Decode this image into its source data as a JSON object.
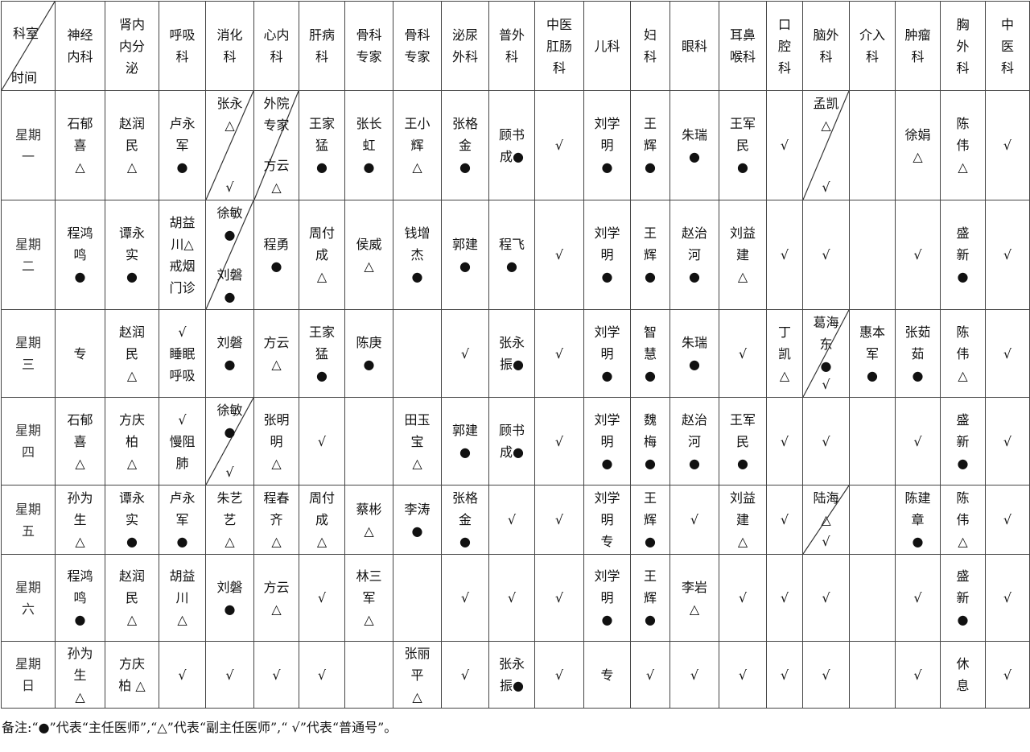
{
  "table": {
    "corner": {
      "top": "科室",
      "bottom": "时间"
    },
    "headers": [
      "神经\n内科",
      "肾内\n内分\n泌",
      "呼吸\n科",
      "消化\n科",
      "心内\n科",
      "肝病\n科",
      "骨科\n专家",
      "骨科\n专家",
      "泌尿\n外科",
      "普外\n科",
      "中医\n肛肠\n科",
      "儿科",
      "妇\n科",
      "眼科",
      "耳鼻\n喉科",
      "口\n腔\n科",
      "脑外\n科",
      "介入\n科",
      "肿瘤\n科",
      "胸\n外\n科",
      "中\n医\n科"
    ],
    "rows": [
      {
        "day": "星期\n一",
        "cells": [
          "石郁\n喜\n△",
          "赵润\n民\n△",
          "卢永\n军\n●",
          {
            "top": "张永\n△",
            "bottom": "√"
          },
          {
            "top": "外院\n专家",
            "bottom": "方云\n△"
          },
          "王家\n猛\n●",
          "张长\n虹\n●",
          "王小\n辉\n△",
          "张格\n金\n●",
          "顾书\n成●",
          "√",
          "刘学\n明\n●",
          "王\n辉\n●",
          "朱瑞\n●",
          "王军\n民\n●",
          "√",
          {
            "top": "孟凯\n△",
            "bottom": "√"
          },
          "",
          "徐娟\n△",
          "陈\n伟\n△",
          "√"
        ]
      },
      {
        "day": "星期\n二",
        "cells": [
          "程鸿\n鸣\n●",
          "谭永\n实\n●",
          "胡益\n川△\n戒烟\n门诊",
          {
            "top": "徐敏\n●",
            "bottom": "刘磐\n●"
          },
          "程勇\n●",
          "周付\n成\n△",
          "侯威\n△",
          "钱增\n杰\n●",
          "郭建\n●",
          "程飞\n●",
          "√",
          "刘学\n明\n●",
          "王\n辉\n●",
          "赵治\n河\n●",
          "刘益\n建\n△",
          "√",
          "√",
          "",
          "√",
          "盛\n新\n●",
          "√"
        ]
      },
      {
        "day": "星期\n三",
        "cells": [
          "专",
          "赵润\n民\n△",
          "√\n睡眠\n呼吸",
          "刘磐\n●",
          "方云\n△",
          "王家\n猛\n●",
          "陈庚\n●",
          "",
          "√",
          "张永\n振●",
          "√",
          "刘学\n明\n●",
          "智\n慧\n●",
          "朱瑞\n●",
          "√",
          "丁\n凯\n△",
          {
            "top": "葛海\n东\n●",
            "bottom": "√"
          },
          "惠本\n军\n●",
          "张茹\n茹\n●",
          "陈\n伟\n△",
          "√"
        ]
      },
      {
        "day": "星期\n四",
        "cells": [
          "石郁\n喜\n△",
          "方庆\n柏\n△",
          "√\n慢阻\n肺",
          {
            "top": "徐敏\n●",
            "bottom": "√"
          },
          "张明\n明\n△",
          "√",
          "",
          "田玉\n宝\n△",
          "郭建\n●",
          "顾书\n成●",
          "√",
          "刘学\n明\n●",
          "魏\n梅\n●",
          "赵治\n河\n●",
          "王军\n民\n●",
          "√",
          "√",
          "",
          "√",
          "盛\n新\n●",
          "√"
        ]
      },
      {
        "day": "星期\n五",
        "cells": [
          "孙为\n生\n△",
          "谭永\n实\n●",
          "卢永\n军\n●",
          "朱艺\n艺\n△",
          "程春\n齐\n△",
          "周付\n成\n△",
          "蔡彬\n△",
          "李涛\n●",
          "张格\n金\n●",
          "√",
          "√",
          "刘学\n明\n专",
          "王\n辉\n●",
          "√",
          "刘益\n建\n△",
          "√",
          {
            "top": "陆海\n△",
            "bottom": "√"
          },
          "",
          "陈建\n章\n●",
          "陈\n伟\n△",
          "√"
        ]
      },
      {
        "day": "星期\n六",
        "cells": [
          "程鸿\n鸣\n●",
          "赵润\n民\n△",
          "胡益\n川\n△",
          "刘磐\n●",
          "方云\n△",
          "√",
          "林三\n军\n△",
          "",
          "√",
          "√",
          "√",
          "刘学\n明\n●",
          "王\n辉\n●",
          "李岩\n△",
          "√",
          "√",
          "√",
          "",
          "√",
          "盛\n新\n●",
          "√"
        ]
      },
      {
        "day": "星期\n日",
        "cells": [
          "孙为\n生\n△",
          "方庆\n柏 △",
          "√",
          "√",
          "√",
          "√",
          "",
          "张丽\n平\n△",
          "√",
          "张永\n振●",
          "√",
          "专",
          "√",
          "√",
          "√",
          "√",
          "√",
          "",
          "√",
          "休\n息",
          "√"
        ]
      }
    ]
  },
  "note": "备注:“●”代表“主任医师”,“△”代表“副主任医师”,“ √”代表“普通号”。"
}
